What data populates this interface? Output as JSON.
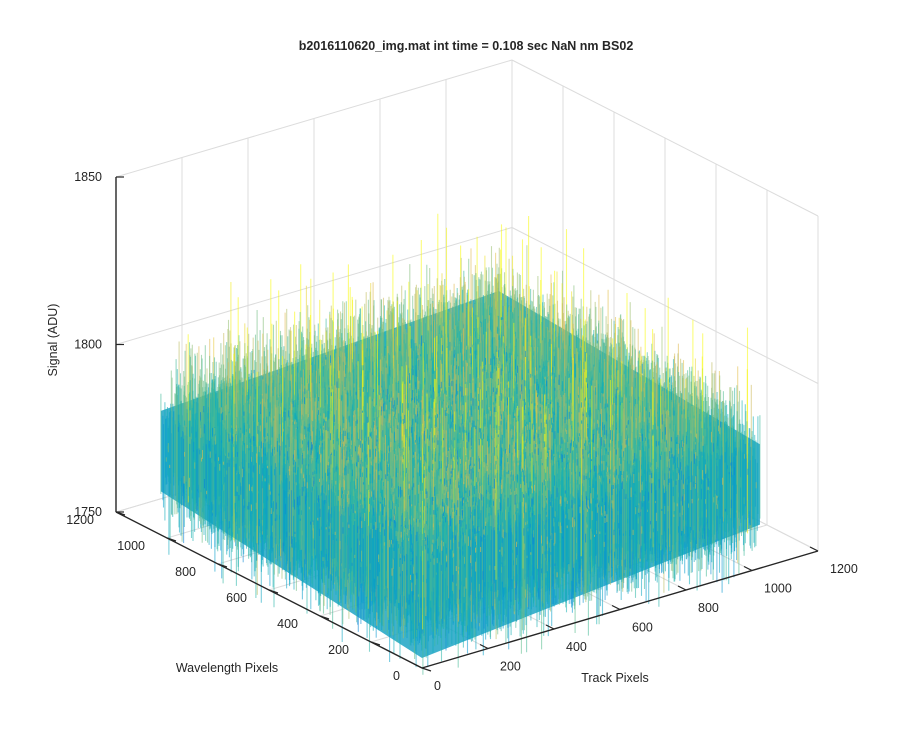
{
  "chart_data": {
    "type": "surface",
    "title": "b2016110620_img.mat int time = 0.108 sec  NaN nm BS02",
    "xlabel": "Track Pixels",
    "ylabel": "Wavelength Pixels",
    "zlabel": "Signal (ADU)",
    "xlim": [
      0,
      1200
    ],
    "ylim": [
      0,
      1200
    ],
    "zlim": [
      1750,
      1850
    ],
    "x_ticks": [
      "0",
      "200",
      "400",
      "600",
      "800",
      "1000",
      "1200"
    ],
    "y_ticks": [
      "0",
      "200",
      "400",
      "600",
      "800",
      "1000",
      "1200"
    ],
    "z_ticks": [
      "1750",
      "1800",
      "1850"
    ],
    "grid": true,
    "colormap": "parula",
    "surface_mean": 1775,
    "surface_noise_range": [
      1745,
      1830
    ],
    "data_extent_x": [
      0,
      1024
    ],
    "data_extent_y": [
      0,
      1024
    ]
  },
  "colors": {
    "axis": "#262626",
    "grid": "#dcdcdc",
    "parula_low": "#0b5bd6",
    "parula_mid": "#13aac0",
    "parula_high": "#c8c332"
  }
}
